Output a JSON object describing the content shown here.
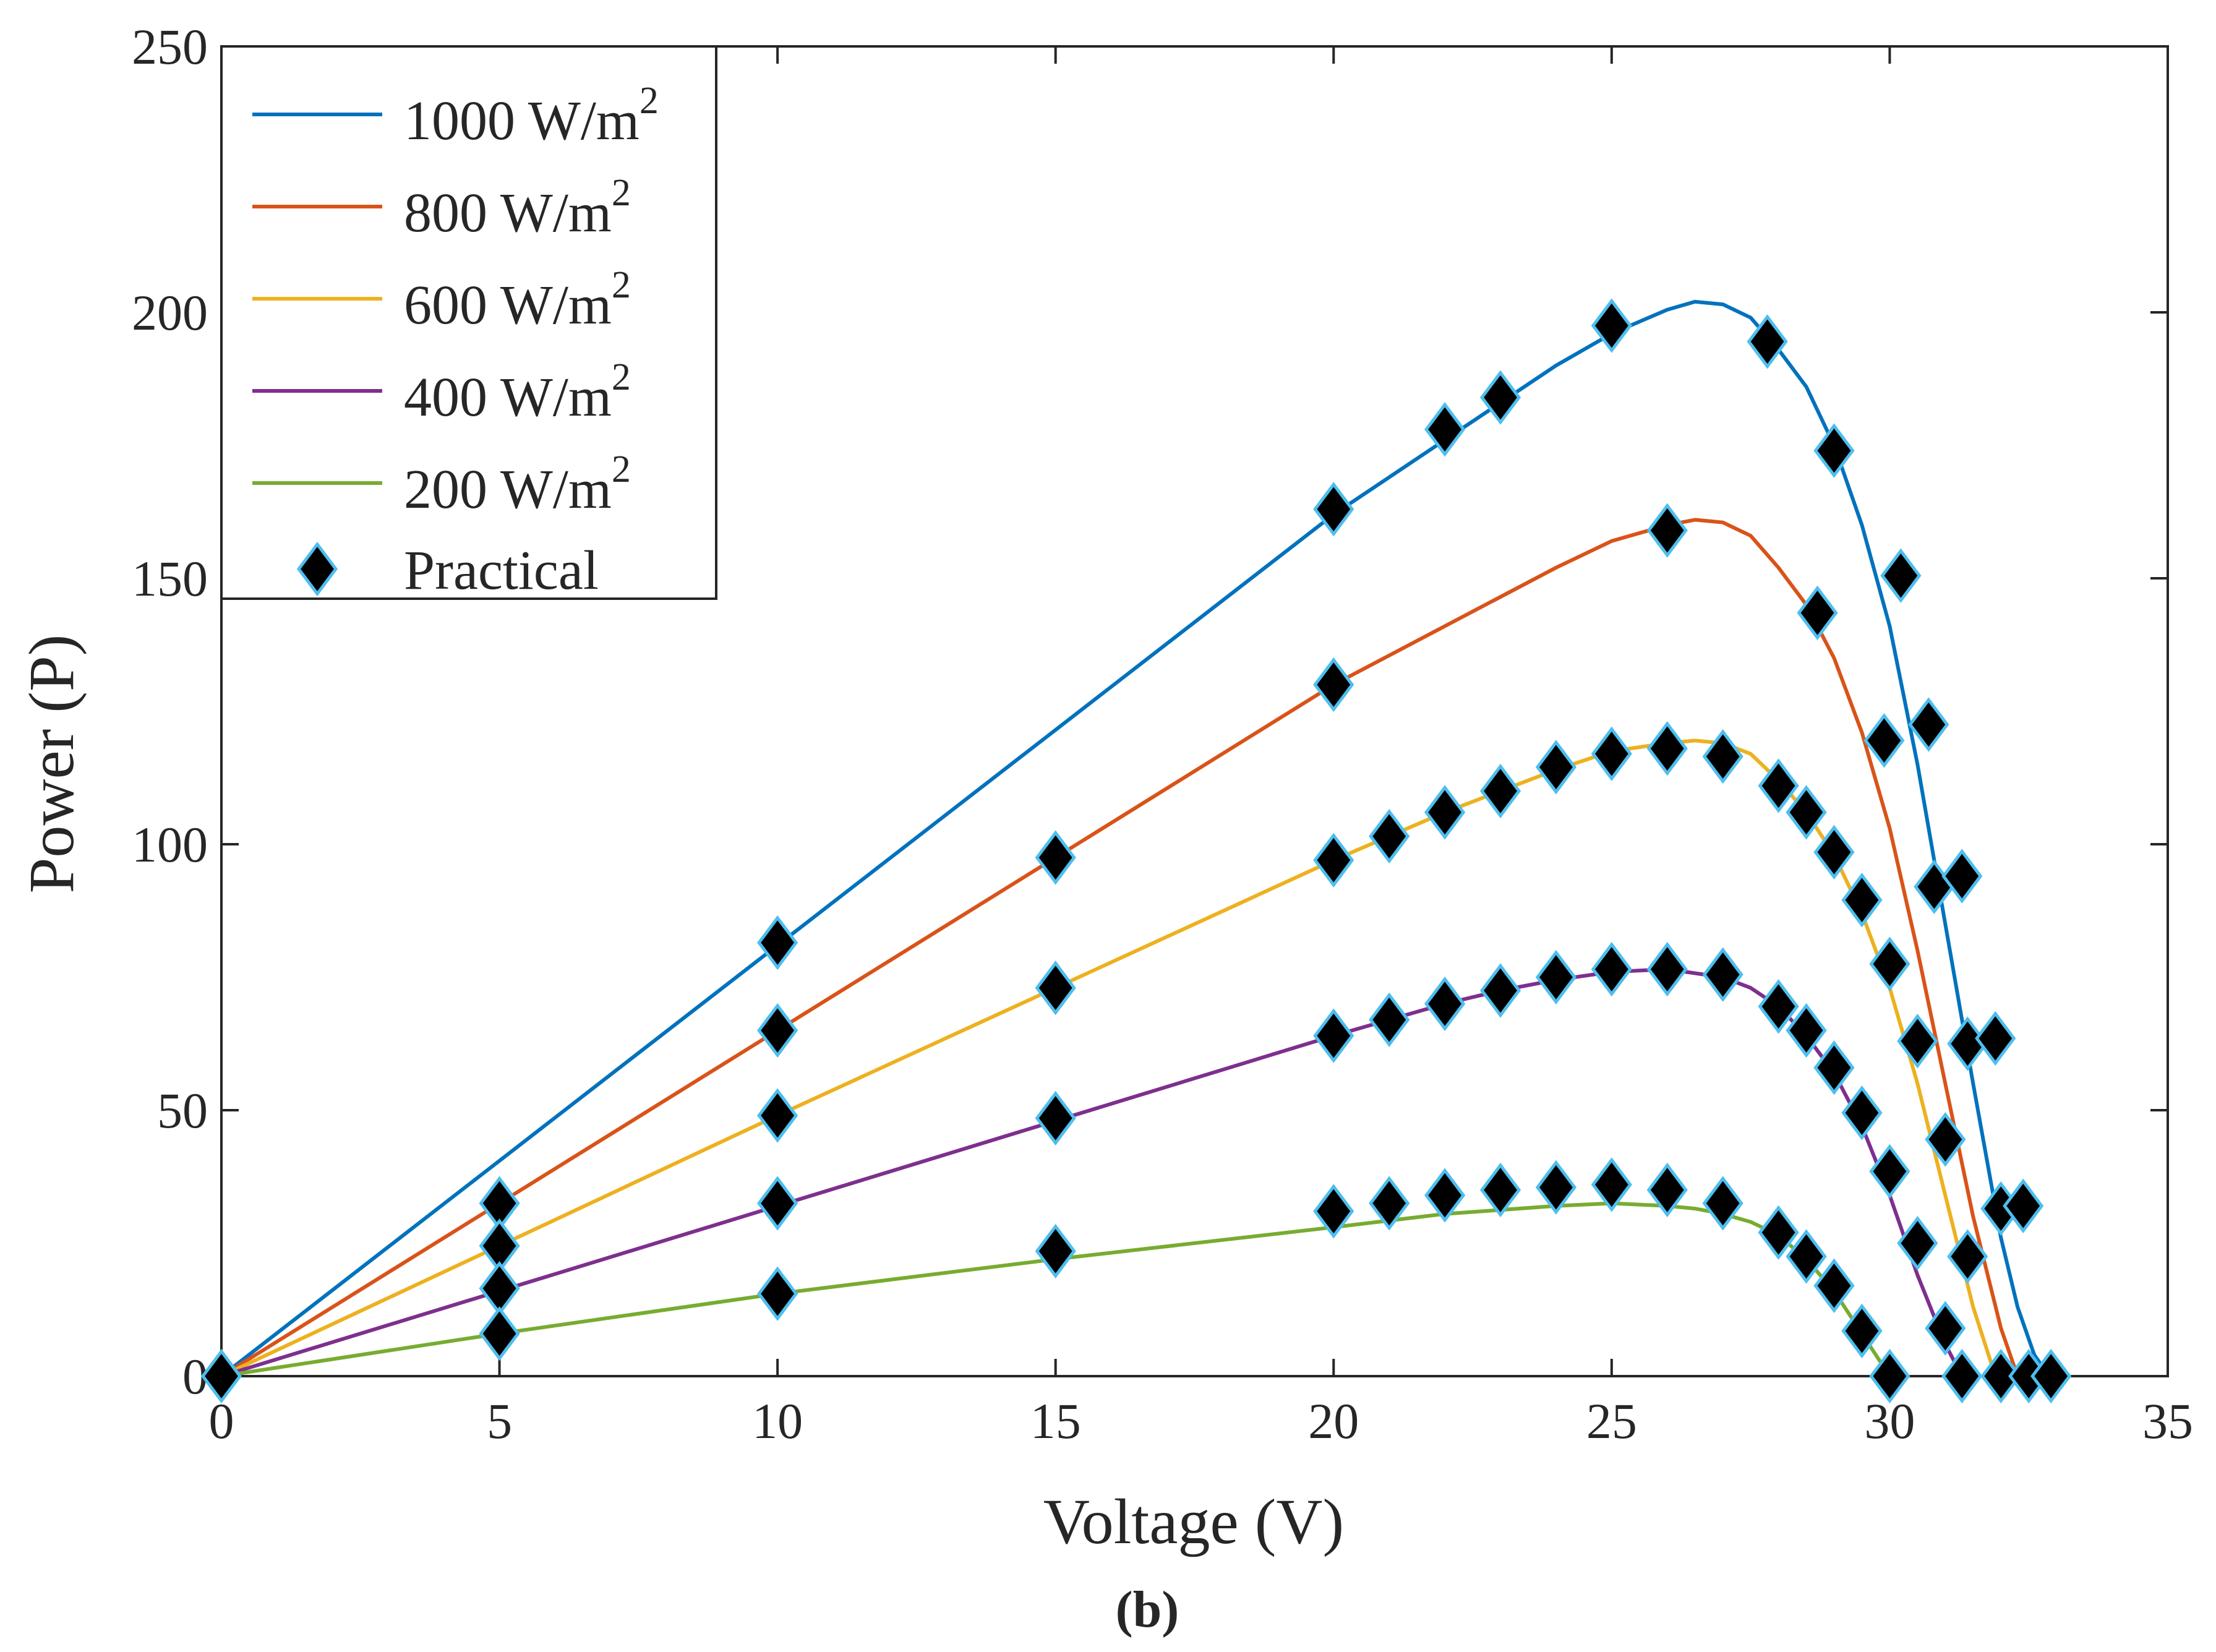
{
  "chart_data": {
    "type": "line",
    "title": "",
    "xlabel": "Voltage (V)",
    "ylabel": "Power (P)",
    "xlim": [
      0,
      35
    ],
    "ylim": [
      0,
      250
    ],
    "xticks": [
      0,
      5,
      10,
      15,
      20,
      25,
      30,
      35
    ],
    "yticks": [
      0,
      50,
      100,
      150,
      200,
      250
    ],
    "grid": false,
    "legend_position": "top-left",
    "caption": "(b)",
    "series": [
      {
        "name": "1000 W/m2",
        "label_text": "1000 W/m",
        "label_sup": "2",
        "color": "#0072BD",
        "x": [
          0,
          5,
          10,
          15,
          20,
          22,
          24,
          25,
          26,
          26.5,
          27,
          27.5,
          28,
          28.5,
          29,
          29.5,
          30,
          30.5,
          31,
          31.5,
          32,
          32.3,
          32.6,
          32.8,
          32.9
        ],
        "y": [
          0,
          40.5,
          81,
          121.5,
          162,
          176,
          190,
          196,
          200.5,
          202,
          201.5,
          199,
          193,
          186,
          175,
          160,
          141,
          115,
          85,
          55,
          26,
          13,
          4,
          1,
          0
        ]
      },
      {
        "name": "800 W/m2",
        "label_text": "800 W/m",
        "label_sup": "2",
        "color": "#D95319",
        "x": [
          0,
          5,
          10,
          15,
          20,
          22,
          24,
          25,
          26,
          26.5,
          27,
          27.5,
          28,
          28.5,
          29,
          29.5,
          30,
          30.5,
          31,
          31.5,
          32,
          32.3
        ],
        "y": [
          0,
          32.5,
          65,
          97.5,
          130,
          141,
          152,
          157,
          160,
          161,
          160.5,
          158,
          152,
          145,
          135,
          121,
          103,
          80,
          55,
          30,
          9,
          0
        ]
      },
      {
        "name": "600 W/m2",
        "label_text": "600 W/m",
        "label_sup": "2",
        "color": "#EDB120",
        "x": [
          0,
          5,
          10,
          15,
          20,
          22,
          24,
          25,
          26,
          26.5,
          27,
          27.5,
          28,
          28.5,
          29,
          29.5,
          30,
          30.5,
          31,
          31.5,
          31.9
        ],
        "y": [
          0,
          24.5,
          49,
          73,
          97,
          106,
          114,
          117.5,
          119,
          119.5,
          119,
          117,
          112,
          106,
          98,
          87,
          73,
          55,
          34,
          13,
          0
        ]
      },
      {
        "name": "400 W/m2",
        "label_text": "400 W/m",
        "label_sup": "2",
        "color": "#7E2F8E",
        "x": [
          0,
          5,
          10,
          15,
          20,
          21,
          22,
          23,
          24,
          25,
          26,
          27,
          27.5,
          28,
          28.5,
          29,
          29.5,
          30,
          30.5,
          31,
          31.3
        ],
        "y": [
          0,
          16,
          32,
          48,
          64,
          67,
          70,
          72.5,
          74.5,
          76,
          76.5,
          75,
          73,
          69.5,
          64,
          57,
          47,
          34,
          19,
          6,
          0
        ]
      },
      {
        "name": "200 W/m2",
        "label_text": "200 W/m",
        "label_sup": "2",
        "color": "#77AC30",
        "x": [
          0,
          5,
          10,
          15,
          20,
          22,
          24,
          25,
          26,
          26.5,
          27,
          27.5,
          28,
          28.5,
          29,
          29.5,
          30
        ],
        "y": [
          0,
          8,
          15.5,
          22,
          28,
          30.5,
          32,
          32.5,
          32,
          31.5,
          30.5,
          29,
          26.5,
          22,
          16,
          8,
          0
        ]
      }
    ],
    "practical": {
      "name": "Practical",
      "marker": "diamond",
      "fill": "#000000",
      "edge": "#4DBEEE",
      "points": [
        [
          0,
          0
        ],
        [
          5,
          32.5
        ],
        [
          5,
          24.5
        ],
        [
          5,
          16.5
        ],
        [
          5,
          8
        ],
        [
          10,
          81.5
        ],
        [
          10,
          65
        ],
        [
          10,
          49
        ],
        [
          10,
          32.5
        ],
        [
          10,
          15.5
        ],
        [
          15,
          97.5
        ],
        [
          15,
          73
        ],
        [
          15,
          48.5
        ],
        [
          15,
          23.5
        ],
        [
          20,
          163
        ],
        [
          20,
          130
        ],
        [
          20,
          97
        ],
        [
          20,
          64
        ],
        [
          20,
          31
        ],
        [
          21,
          101.5
        ],
        [
          21,
          67
        ],
        [
          21,
          32.5
        ],
        [
          22,
          178
        ],
        [
          22,
          106
        ],
        [
          22,
          70
        ],
        [
          22,
          34
        ],
        [
          23,
          184
        ],
        [
          23,
          110
        ],
        [
          23,
          72.5
        ],
        [
          23,
          35
        ],
        [
          24,
          114.5
        ],
        [
          24,
          75
        ],
        [
          24,
          35.5
        ],
        [
          25,
          197.5
        ],
        [
          25,
          117
        ],
        [
          25,
          76.5
        ],
        [
          25,
          36
        ],
        [
          26,
          159
        ],
        [
          26,
          118
        ],
        [
          26,
          76.5
        ],
        [
          26,
          35
        ],
        [
          27,
          116.5
        ],
        [
          27,
          75.5
        ],
        [
          27,
          32.5
        ],
        [
          27.8,
          194.5
        ],
        [
          28,
          111
        ],
        [
          28,
          69.5
        ],
        [
          28,
          27
        ],
        [
          28.5,
          106
        ],
        [
          28.5,
          65
        ],
        [
          28.5,
          22.5
        ],
        [
          28.7,
          143.5
        ],
        [
          29,
          174
        ],
        [
          29,
          98.5
        ],
        [
          29,
          58
        ],
        [
          29,
          17
        ],
        [
          29.5,
          89.5
        ],
        [
          29.5,
          49.5
        ],
        [
          29.5,
          8.5
        ],
        [
          29.9,
          119.5
        ],
        [
          30,
          77.5
        ],
        [
          30,
          38.5
        ],
        [
          30,
          0
        ],
        [
          30.2,
          150.5
        ],
        [
          30.5,
          63
        ],
        [
          30.5,
          25
        ],
        [
          30.7,
          122.5
        ],
        [
          30.8,
          92
        ],
        [
          31,
          44.5
        ],
        [
          31,
          9
        ],
        [
          31.3,
          94
        ],
        [
          31.3,
          0
        ],
        [
          31.4,
          62.5
        ],
        [
          31.4,
          22.5
        ],
        [
          31.9,
          63.5
        ],
        [
          32,
          31.5
        ],
        [
          32,
          0
        ],
        [
          32.4,
          32
        ],
        [
          32.5,
          0
        ],
        [
          32.9,
          0
        ]
      ]
    }
  }
}
